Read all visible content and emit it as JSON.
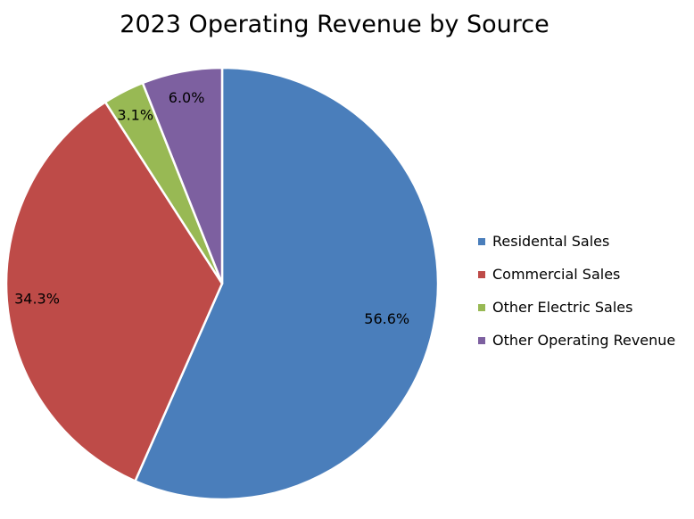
{
  "chart_data": {
    "type": "pie",
    "title": "2023 Operating Revenue by Source",
    "legend_position": "right",
    "slices": [
      {
        "label": "Residental Sales",
        "value": 56.6,
        "display": "56.6%",
        "color": "#4A7EBB"
      },
      {
        "label": "Commercial Sales",
        "value": 34.3,
        "display": "34.3%",
        "color": "#BE4B48"
      },
      {
        "label": "Other Electric Sales",
        "value": 3.1,
        "display": "3.1%",
        "color": "#98B954"
      },
      {
        "label": "Other Operating Revenue",
        "value": 6.0,
        "display": "6.0%",
        "color": "#7D60A0"
      }
    ]
  }
}
